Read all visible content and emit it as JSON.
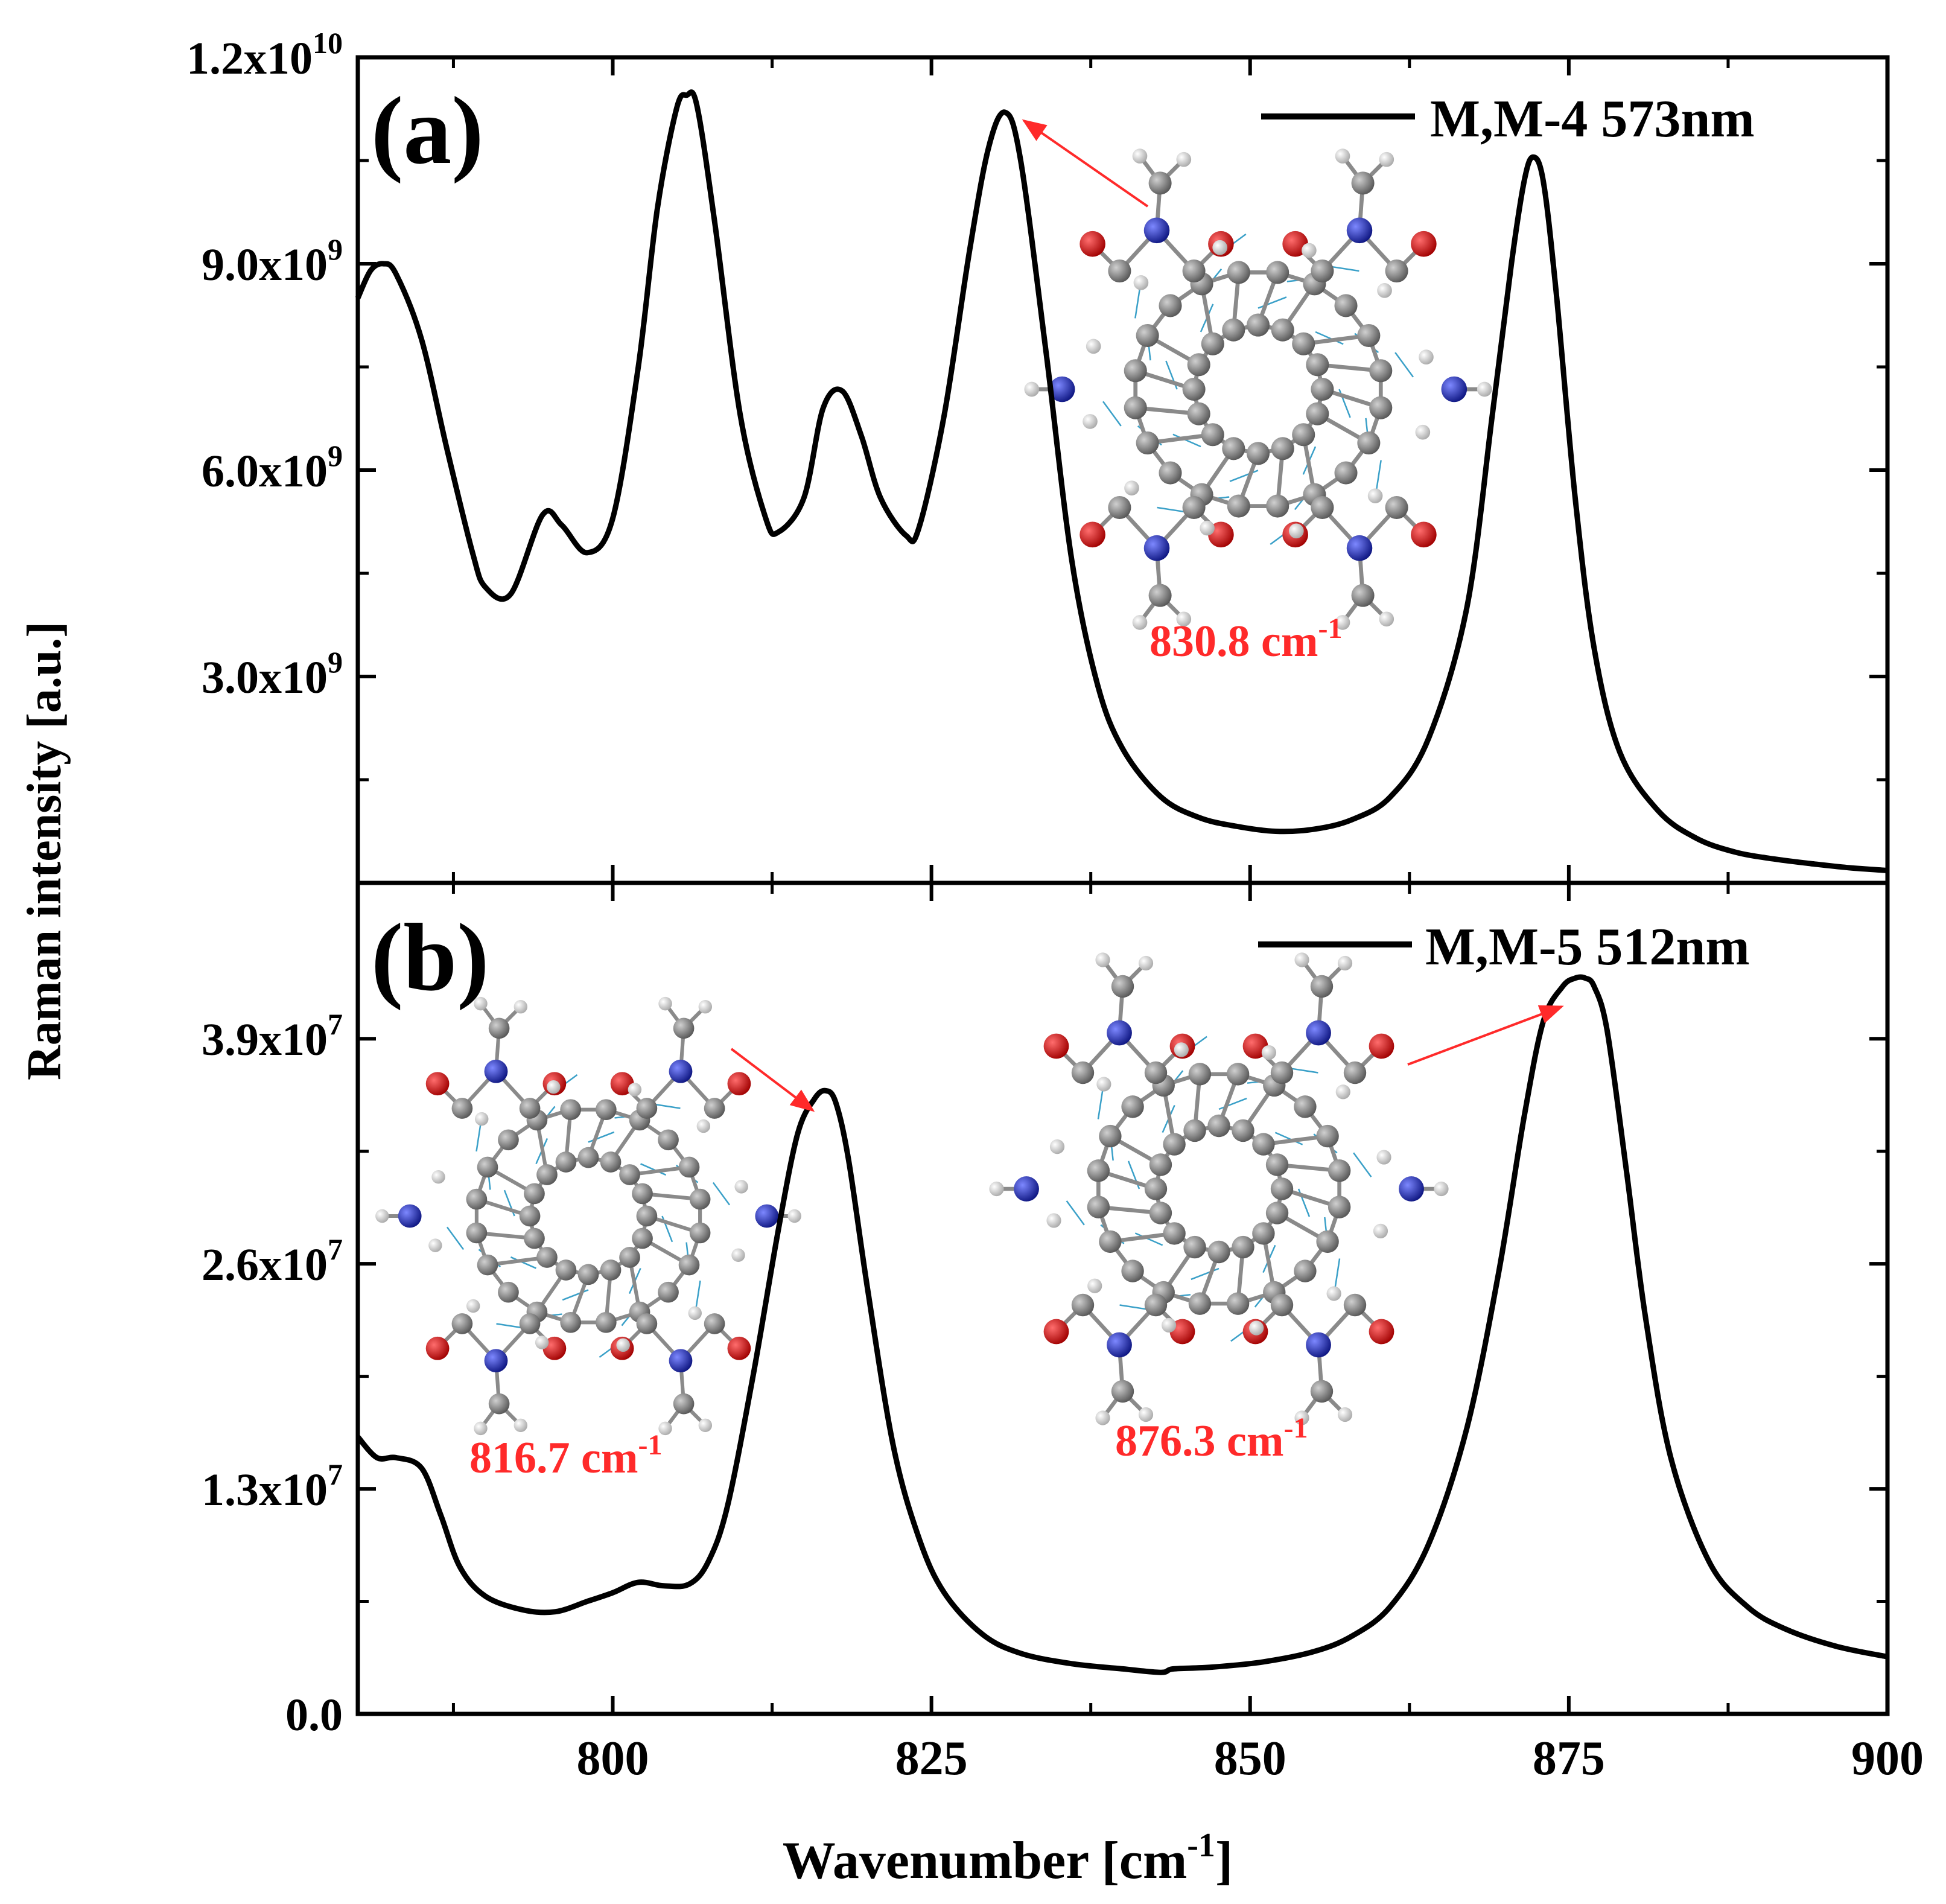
{
  "chart_data": {
    "type": "line",
    "x_axis": {
      "label": "Wavenumber [cm",
      "label_sup": "-1",
      "label_tail": "]",
      "range": [
        780,
        900
      ],
      "ticks": [
        "800",
        "825",
        "850",
        "875",
        "900"
      ],
      "tick_values": [
        800,
        825,
        850,
        875,
        900
      ]
    },
    "y_axis_label": "Raman intensity [a.u.]",
    "panels": [
      {
        "panel_label": "(a)",
        "legend": "M,M-4 573nm",
        "ylim": [
          0,
          12000000000
        ],
        "y_ticks": [
          {
            "value": 3000000000,
            "mant": "3.0x10",
            "exp": "9"
          },
          {
            "value": 6000000000,
            "mant": "6.0x10",
            "exp": "9"
          },
          {
            "value": 9000000000,
            "mant": "9.0x10",
            "exp": "9"
          },
          {
            "value": 12000000000,
            "mant": "1.2x10",
            "exp": "10"
          }
        ],
        "series": [
          {
            "name": "M,M-4 573nm",
            "x": [
              780,
              781,
              782,
              783,
              785,
              787,
              789,
              790,
              792,
              794.5,
              796,
              798,
              800,
              802,
              803.5,
              805,
              805.8,
              806.6,
              808,
              810,
              812,
              813,
              815,
              816.5,
              818,
              819.5,
              821,
              823,
              824,
              826,
              828,
              829.5,
              830.8,
              832,
              834,
              836,
              838,
              840,
              843,
              846,
              849,
              852,
              855,
              858,
              861,
              864,
              867,
              869,
              870.5,
              871.5,
              872.2,
              873,
              874,
              875.5,
              877,
              879,
              882,
              885,
              888,
              891,
              894,
              897,
              900
            ],
            "y": [
              8500000000.0,
              8900000000.0,
              9000000000.0,
              8850000000.0,
              7900000000.0,
              6300000000.0,
              4800000000.0,
              4300000000.0,
              4200000000.0,
              5350000000.0,
              5200000000.0,
              4800000000.0,
              5300000000.0,
              7500000000.0,
              9800000000.0,
              11250000000.0,
              11450000000.0,
              11300000000.0,
              9600000000.0,
              6800000000.0,
              5300000000.0,
              5100000000.0,
              5600000000.0,
              6900000000.0,
              7150000000.0,
              6500000000.0,
              5600000000.0,
              5050000000.0,
              5150000000.0,
              6800000000.0,
              9200000000.0,
              10700000000.0,
              11200000000.0,
              10500000000.0,
              7700000000.0,
              4700000000.0,
              2900000000.0,
              1950000000.0,
              1250000000.0,
              950000000.0,
              820000000.0,
              750000000.0,
              780000000.0,
              920000000.0,
              1250000000.0,
              2100000000.0,
              4000000000.0,
              6800000000.0,
              9000000000.0,
              10200000000.0,
              10550000000.0,
              10200000000.0,
              8600000000.0,
              5600000000.0,
              3400000000.0,
              1900000000.0,
              1050000000.0,
              650000000.0,
              450000000.0,
              350000000.0,
              280000000.0,
              220000000.0,
              180000000.0
            ]
          }
        ],
        "annotation": {
          "text": "830.8 cm",
          "sup": "-1",
          "color": "#ff2a2a"
        }
      },
      {
        "panel_label": "(b)",
        "legend": "M,M-5 512nm",
        "ylim": [
          0,
          48000000
        ],
        "y_ticks": [
          {
            "value": 0,
            "mant": "0.0",
            "exp": ""
          },
          {
            "value": 13000000,
            "mant": "1.3x10",
            "exp": "7"
          },
          {
            "value": 26000000,
            "mant": "2.6x10",
            "exp": "7"
          },
          {
            "value": 39000000,
            "mant": "3.9x10",
            "exp": "7"
          }
        ],
        "series": [
          {
            "name": "M,M-5 512nm",
            "x": [
              780,
              781.5,
              783,
              785,
              786.5,
              788,
              790,
              793,
              795.5,
              798,
              800,
              802,
              804,
              806,
              807.5,
              809,
              811,
              813,
              814.5,
              815.8,
              816.7,
              817.5,
              818.5,
              820,
              822,
              824,
              826,
              829,
              832,
              836,
              840,
              843,
              844,
              847,
              851,
              855,
              858,
              861,
              864,
              867,
              869.5,
              871.5,
              873,
              874.5,
              875.5,
              876.3,
              877,
              878,
              879.5,
              881,
              883,
              886,
              889,
              892,
              896,
              900
            ],
            "y": [
              16000000.0,
              14800000.0,
              14800000.0,
              14200000.0,
              11500000.0,
              8500000.0,
              6800000.0,
              6000000.0,
              5900000.0,
              6500000.0,
              7000000.0,
              7600000.0,
              7400000.0,
              7500000.0,
              8800000.0,
              12000000.0,
              19500000.0,
              28000000.0,
              33500000.0,
              35500000.0,
              36000000.0,
              35300000.0,
              32000000.0,
              24500000.0,
              15500000.0,
              10200000.0,
              7000000.0,
              4600000.0,
              3500000.0,
              2900000.0,
              2600000.0,
              2400000.0,
              2600000.0,
              2700000.0,
              3000000.0,
              3600000.0,
              4500000.0,
              6200000.0,
              9800000.0,
              16500000.0,
              25500000.0,
              34500000.0,
              40000000.0,
              42000000.0,
              42500000.0,
              42500000.0,
              42000000.0,
              39500000.0,
              31500000.0,
              23000000.0,
              14800000.0,
              8800000.0,
              6200000.0,
              4900000.0,
              3900000.0,
              3300000.0
            ]
          }
        ],
        "annotations": [
          {
            "text": "816.7 cm",
            "sup": "-1",
            "color": "#ff2a2a"
          },
          {
            "text": "876.3 cm",
            "sup": "-1",
            "color": "#ff2a2a"
          }
        ]
      }
    ]
  },
  "colors": {
    "line": "#000000",
    "arrow": "#ff2a2a",
    "carbon": "#7b7b7b",
    "nitrogen": "#1f2bb8",
    "oxygen": "#d40000",
    "hydrogen": "#d8d8d8",
    "vector": "#3aa0c8"
  }
}
